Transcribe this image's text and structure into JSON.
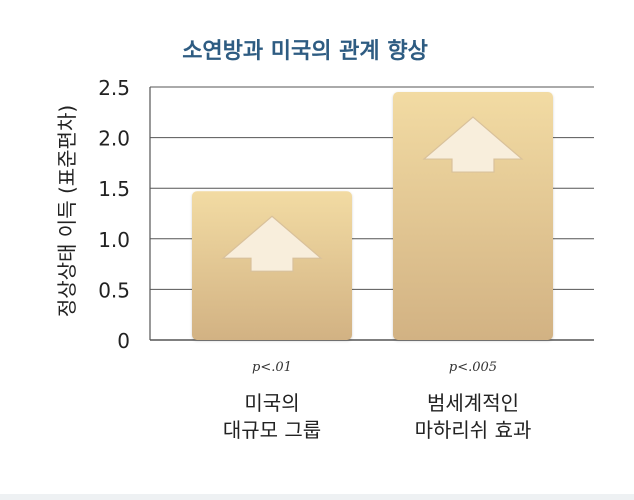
{
  "chart_data": {
    "type": "bar",
    "title": "소연방과 미국의 관계 향상",
    "ylabel": "정상상태 이득 (표준편차)",
    "xlabel": "",
    "ylim": [
      0,
      2.5
    ],
    "yticks": [
      "0",
      "0.5",
      "1.0",
      "1.5",
      "2.0",
      "2.5"
    ],
    "grid": true,
    "categories": [
      {
        "line1": "미국의",
        "line2": "대규모 그룹",
        "pvalue": "p<.01"
      },
      {
        "line1": "범세계적인",
        "line2": "마하리쉬 효과",
        "pvalue": "p<.005"
      }
    ],
    "values": [
      1.47,
      2.45
    ]
  },
  "colors": {
    "title": "#2e5c82",
    "bar_top": "#f2dba3",
    "bar_bottom": "#d2b283",
    "arrow_fill": "#f8eedc",
    "arrow_stroke": "#d9c19b",
    "grid": "#555555",
    "text": "#222222"
  }
}
